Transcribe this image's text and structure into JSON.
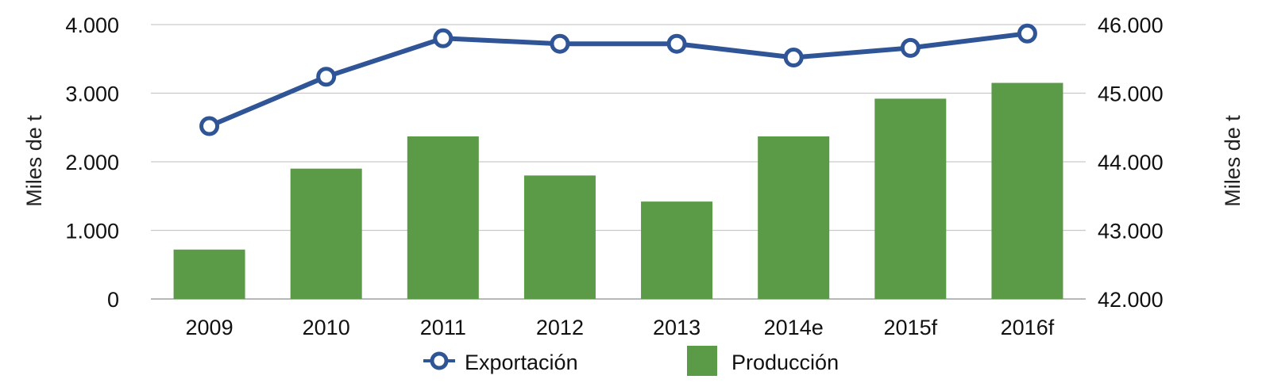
{
  "chart_data": {
    "type": "bar",
    "categories": [
      "2009",
      "2010",
      "2011",
      "2012",
      "2013",
      "2014e",
      "2015f",
      "2016f"
    ],
    "series": [
      {
        "name": "Producción",
        "type": "bar",
        "axis": "left",
        "color": "#5b9a47",
        "values": [
          720,
          1900,
          2370,
          1800,
          1420,
          2370,
          2920,
          3150
        ]
      },
      {
        "name": "Exportación",
        "type": "line",
        "axis": "right",
        "color": "#2f5597",
        "marker": "hollow-circle",
        "values": [
          44520,
          45240,
          45800,
          45720,
          45720,
          45520,
          45660,
          45870
        ]
      }
    ],
    "ylabel": "Miles de t",
    "ylim": [
      0,
      4000
    ],
    "yticks": [
      "0",
      "1.000",
      "2.000",
      "3.000",
      "4.000"
    ],
    "y2label": "Miles de t",
    "y2lim": [
      42000,
      46000
    ],
    "y2ticks": [
      "42.000",
      "43.000",
      "44.000",
      "45.000",
      "46.000"
    ],
    "grid": true,
    "legend_position": "bottom"
  }
}
